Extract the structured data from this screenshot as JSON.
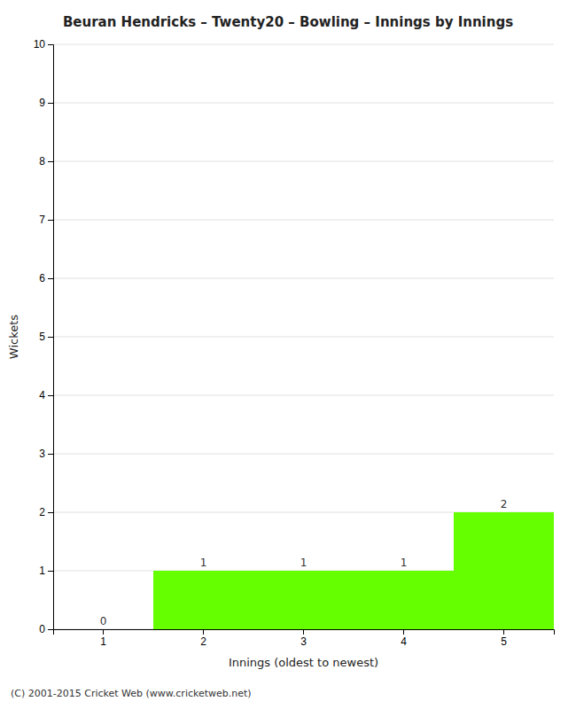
{
  "chart_data": {
    "type": "bar",
    "title": "Beuran Hendricks – Twenty20 – Bowling – Innings by Innings",
    "xlabel": "Innings (oldest to newest)",
    "ylabel": "Wickets",
    "categories": [
      "1",
      "2",
      "3",
      "4",
      "5"
    ],
    "values": [
      0,
      1,
      1,
      1,
      2
    ],
    "color": "#66ff00",
    "ylim": [
      0,
      10
    ],
    "yticks": [
      0,
      1,
      2,
      3,
      4,
      5,
      6,
      7,
      8,
      9,
      10
    ],
    "grid": true,
    "data_labels": true,
    "footer": "(C) 2001-2015 Cricket Web (www.cricketweb.net)"
  }
}
